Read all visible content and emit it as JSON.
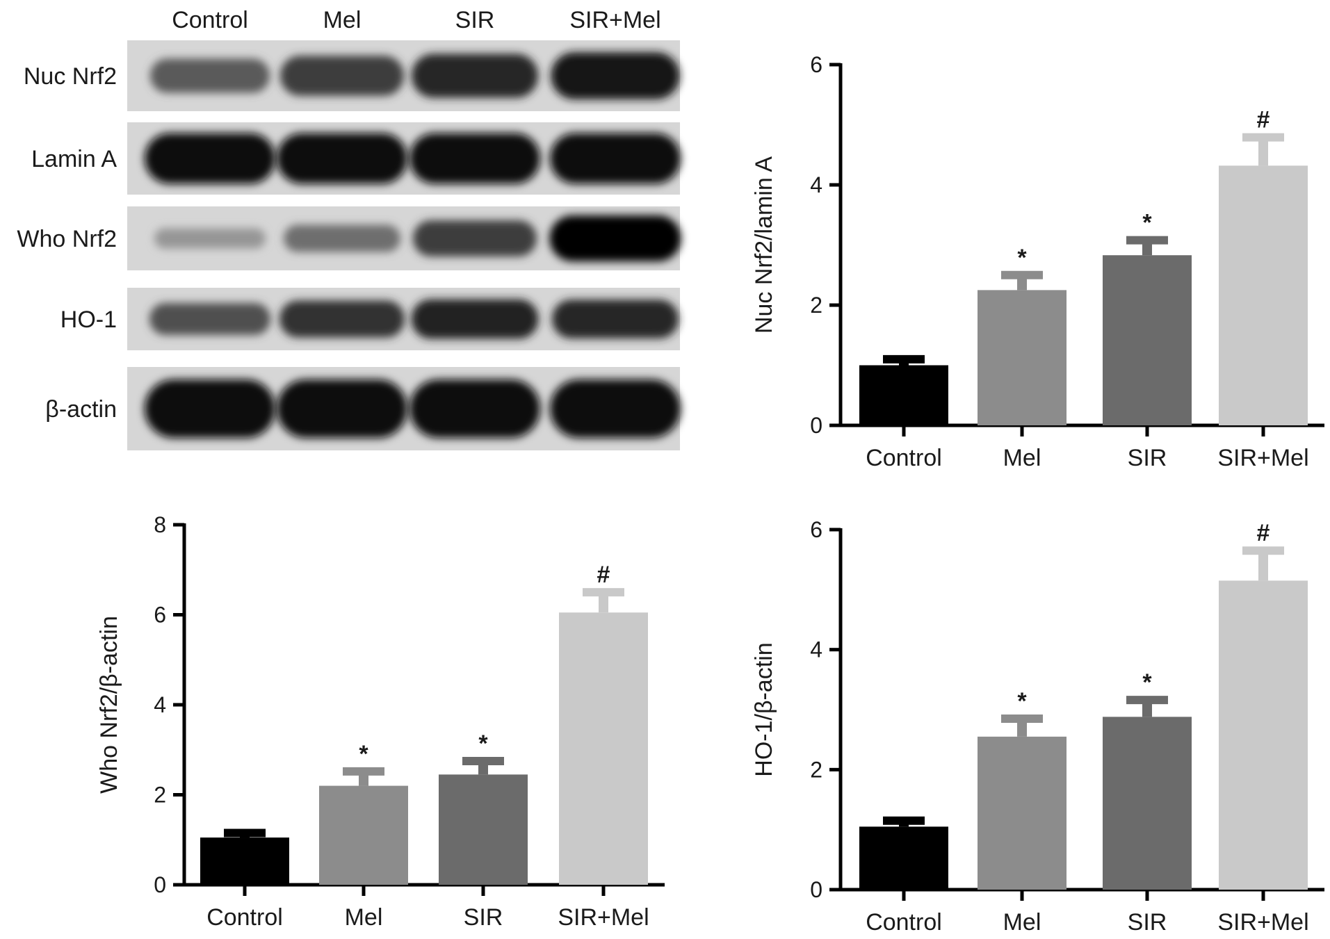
{
  "blot": {
    "lanes": [
      "Control",
      "Mel",
      "SIR",
      "SIR+Mel"
    ],
    "bands": [
      {
        "label": "Nuc Nrf2",
        "intensities": [
          0.55,
          0.7,
          0.8,
          0.88
        ]
      },
      {
        "label": "Lamin A",
        "intensities": [
          0.95,
          0.95,
          0.95,
          0.95
        ]
      },
      {
        "label": "Who Nrf2",
        "intensities": [
          0.25,
          0.45,
          0.7,
          0.98
        ]
      },
      {
        "label": "HO-1",
        "intensities": [
          0.6,
          0.75,
          0.82,
          0.8
        ]
      },
      {
        "label": "β-actin",
        "intensities": [
          0.95,
          0.95,
          0.95,
          0.95
        ]
      }
    ]
  },
  "colors": {
    "bars": [
      "#000000",
      "#8c8c8c",
      "#6b6b6b",
      "#c9c9c9"
    ],
    "axis": "#000000"
  },
  "chart_data": [
    {
      "type": "bar",
      "categories": [
        "Control",
        "Mel",
        "SIR",
        "SIR+Mel"
      ],
      "values": [
        1.0,
        2.25,
        2.83,
        4.32
      ],
      "errors": [
        0.1,
        0.25,
        0.25,
        0.47
      ],
      "significance": [
        "",
        "*",
        "*",
        "#"
      ],
      "ylabel": "Nuc Nrf2/lamin A",
      "ylim": [
        0,
        6
      ],
      "yticks": [
        0,
        2,
        4,
        6
      ],
      "grid": false
    },
    {
      "type": "bar",
      "categories": [
        "Control",
        "Mel",
        "SIR",
        "SIR+Mel"
      ],
      "values": [
        1.05,
        2.2,
        2.45,
        6.05
      ],
      "errors": [
        0.1,
        0.32,
        0.3,
        0.45
      ],
      "significance": [
        "",
        "*",
        "*",
        "#"
      ],
      "ylabel": "Who Nrf2/β-actin",
      "ylim": [
        0,
        8
      ],
      "yticks": [
        0,
        2,
        4,
        6,
        8
      ],
      "grid": false
    },
    {
      "type": "bar",
      "categories": [
        "Control",
        "Mel",
        "SIR",
        "SIR+Mel"
      ],
      "values": [
        1.05,
        2.55,
        2.88,
        5.15
      ],
      "errors": [
        0.1,
        0.3,
        0.28,
        0.5
      ],
      "significance": [
        "",
        "*",
        "*",
        "#"
      ],
      "ylabel": "HO-1/β-actin",
      "ylim": [
        0,
        6
      ],
      "yticks": [
        0,
        2,
        4,
        6
      ],
      "grid": false
    }
  ]
}
